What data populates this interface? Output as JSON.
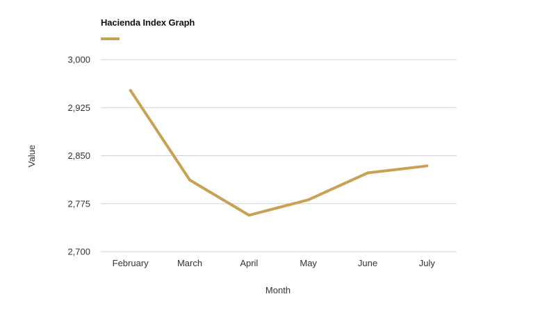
{
  "chart_data": {
    "type": "line",
    "title": "Hacienda Index Graph",
    "xlabel": "Month",
    "ylabel": "Value",
    "categories": [
      "February",
      "March",
      "April",
      "May",
      "June",
      "July"
    ],
    "series": [
      {
        "values": [
          2952,
          2812,
          2757,
          2781,
          2823,
          2834
        ],
        "color": "#c9a054"
      }
    ],
    "ylim": [
      2700,
      3000
    ],
    "yticks": [
      2700,
      2775,
      2850,
      2925,
      3000
    ],
    "ytick_labels": [
      "2,700",
      "2,775",
      "2,850",
      "2,925",
      "3,000"
    ],
    "grid": true,
    "legend": "top-left",
    "gridline_color": "#d0d0d0"
  }
}
